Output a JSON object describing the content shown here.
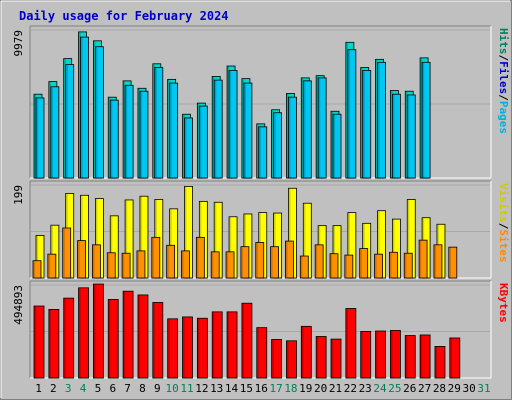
{
  "chart_data": {
    "type": "bar",
    "title": "Daily usage for February 2024",
    "days": [
      "1",
      "2",
      "3",
      "4",
      "5",
      "6",
      "7",
      "8",
      "9",
      "10",
      "11",
      "12",
      "13",
      "14",
      "15",
      "16",
      "17",
      "18",
      "19",
      "20",
      "21",
      "22",
      "23",
      "24",
      "25",
      "26",
      "27",
      "28",
      "29",
      "30",
      "31"
    ],
    "weekend_days": [
      3,
      4,
      10,
      11,
      17,
      18,
      24,
      25,
      31
    ],
    "colors": {
      "hits": "#00d8c8",
      "files": "#00c8f0",
      "pages": "#00aad8",
      "visits": "#ffff00",
      "sites": "#ff9000",
      "kbytes": "#ff0000",
      "weekday_label": "#000000",
      "weekend_label": "#00805a"
    },
    "panels": [
      {
        "id": "top",
        "max_label": "9979",
        "ymax": 9979,
        "legend": [
          {
            "text": "Hits",
            "color": "#008060"
          },
          {
            "text": "/",
            "color": "#000000"
          },
          {
            "text": "Files",
            "color": "#0000cc"
          },
          {
            "text": "/",
            "color": "#000000"
          },
          {
            "text": "Pages",
            "color": "#00b0d8"
          }
        ],
        "series": [
          {
            "name": "Hits",
            "values": [
              5650,
              6500,
              8050,
              9850,
              9250,
              5450,
              6550,
              6050,
              7700,
              6650,
              4300,
              5050,
              6850,
              7550,
              6700,
              3650,
              4600,
              5700,
              6750,
              6900,
              4500,
              9150,
              7450,
              8000,
              5900,
              5850,
              8100,
              null,
              null,
              null,
              null
            ]
          },
          {
            "name": "Files",
            "values": [
              5400,
              6150,
              7650,
              9500,
              8850,
              5250,
              6250,
              5850,
              7450,
              6400,
              4050,
              4850,
              6600,
              7250,
              6400,
              3450,
              4400,
              5450,
              6550,
              6750,
              4300,
              8650,
              7250,
              7800,
              5650,
              5600,
              7800,
              null,
              null,
              null,
              null
            ]
          }
        ]
      },
      {
        "id": "mid",
        "max_label": "199",
        "ymax": 199,
        "legend": [
          {
            "text": "Visits",
            "color": "#cccc00"
          },
          {
            "text": "/",
            "color": "#000000"
          },
          {
            "text": "Sites",
            "color": "#ff8800"
          }
        ],
        "series": [
          {
            "name": "Visits",
            "values": [
              91,
              113,
              181,
              177,
              170,
              133,
              167,
              175,
              168,
              148,
              196,
              164,
              162,
              131,
              137,
              140,
              139,
              192,
              160,
              112,
              112,
              140,
              117,
              144,
              126,
              168,
              129,
              115,
              null,
              null,
              null
            ]
          },
          {
            "name": "Sites",
            "values": [
              37,
              51,
              107,
              80,
              71,
              54,
              53,
              58,
              87,
              70,
              58,
              87,
              56,
              56,
              67,
              76,
              67,
              79,
              47,
              71,
              52,
              49,
              63,
              51,
              55,
              53,
              81,
              71,
              66,
              null,
              null
            ]
          }
        ]
      },
      {
        "id": "bot",
        "max_label": "494893",
        "ymax": 494893,
        "legend": [
          {
            "text": "KBytes",
            "color": "#ff0000"
          }
        ],
        "series": [
          {
            "name": "KBytes",
            "values": [
              383000,
              365000,
              425000,
              480000,
              500000,
              418000,
              462000,
              442000,
              402000,
              315000,
              325000,
              318000,
              352000,
              352000,
              398000,
              268000,
              205000,
              198000,
              275000,
              221000,
              207000,
              370000,
              248000,
              250000,
              253000,
              226000,
              229000,
              168000,
              213000,
              null,
              null
            ]
          }
        ]
      }
    ]
  }
}
